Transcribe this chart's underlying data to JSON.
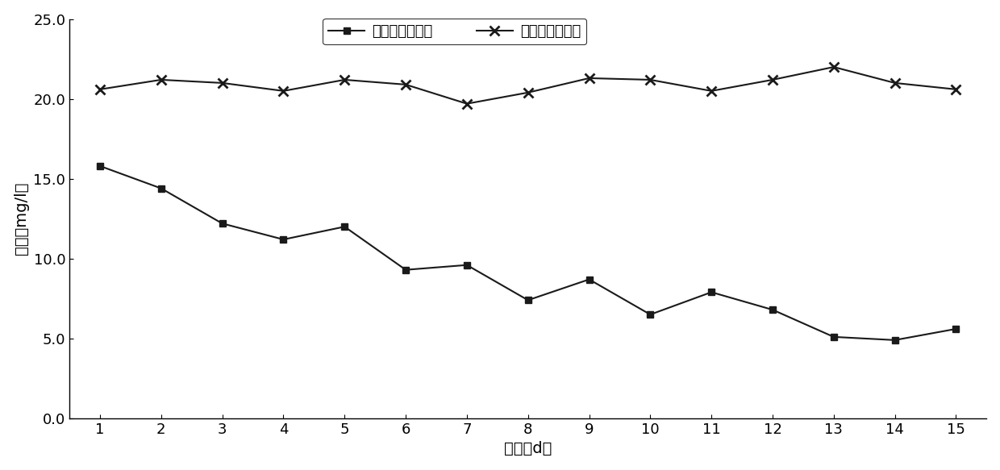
{
  "x": [
    1,
    2,
    3,
    4,
    5,
    6,
    7,
    8,
    9,
    10,
    11,
    12,
    13,
    14,
    15
  ],
  "outlet_nitrate": [
    15.8,
    14.4,
    12.2,
    11.2,
    12.0,
    9.3,
    9.6,
    7.4,
    8.7,
    6.5,
    7.9,
    6.8,
    5.1,
    4.9,
    5.6
  ],
  "inlet_nitrate_all": [
    20.6,
    21.2,
    21.0,
    20.5,
    21.2,
    20.9,
    19.7,
    20.4,
    21.3,
    21.2,
    20.5,
    21.2,
    22.0,
    21.0,
    20.6
  ],
  "outlet_label": "出水硒酸盐浓度",
  "inlet_label": "进水硒酸盐浓度",
  "xlabel": "时间（d）",
  "ylabel": "浓度（mg/l）",
  "line_color": "#1a1a1a",
  "ylim": [
    0.0,
    25.0
  ],
  "yticks": [
    0.0,
    5.0,
    10.0,
    15.0,
    20.0,
    25.0
  ],
  "xticks": [
    1,
    2,
    3,
    4,
    5,
    6,
    7,
    8,
    9,
    10,
    11,
    12,
    13,
    14,
    15
  ],
  "label_fontsize": 14,
  "tick_fontsize": 13,
  "legend_fontsize": 13
}
